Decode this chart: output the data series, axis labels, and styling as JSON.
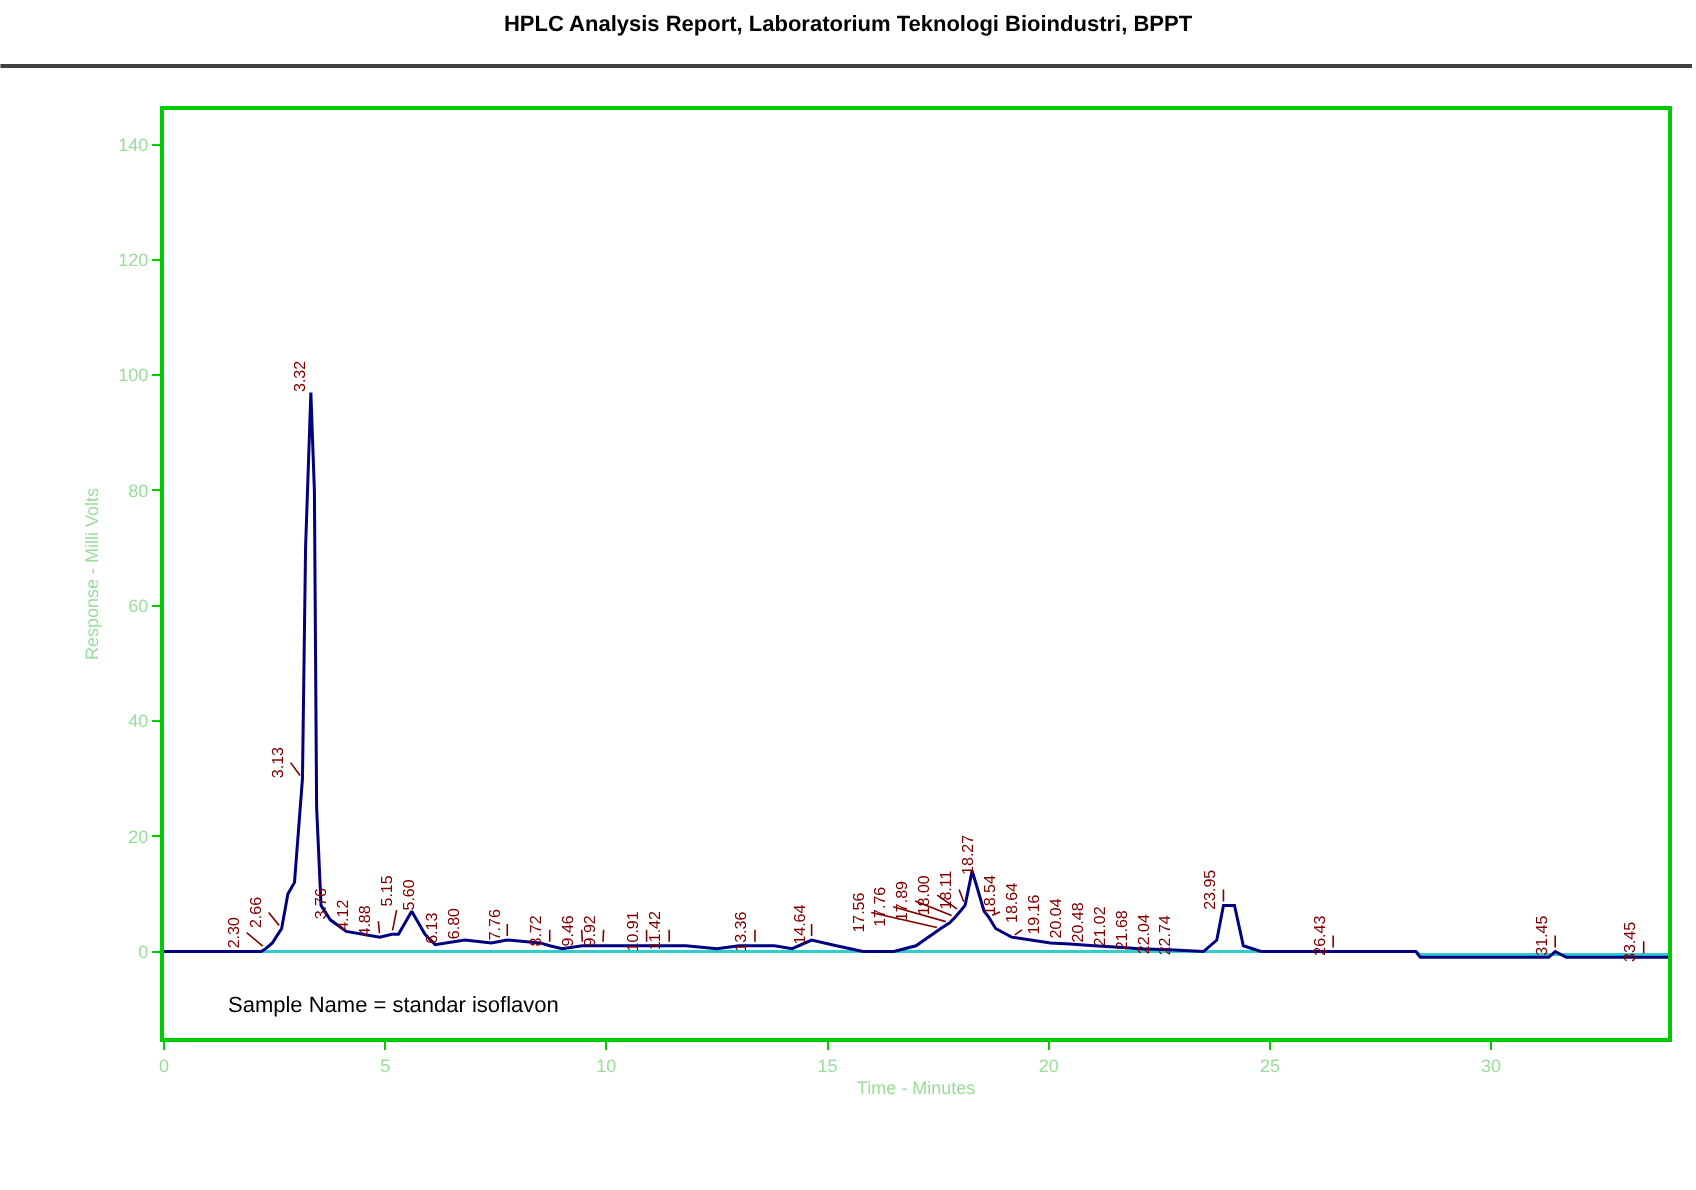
{
  "chart_data": {
    "type": "line",
    "title": "HPLC Analysis Report, Laboratorium Teknologi Bioindustri, BPPT",
    "xlabel": "Time - Minutes",
    "ylabel": "Response - Milli Volts",
    "xlim": [
      0,
      34
    ],
    "xticks": [
      0,
      5,
      10,
      15,
      20,
      25,
      30
    ],
    "ylim": [
      -15,
      146
    ],
    "yticks": [
      0,
      20,
      40,
      60,
      80,
      100,
      120,
      140
    ],
    "marker": "none",
    "line_style": "solid",
    "series": [
      {
        "color": "#33cccc",
        "x": [
          2.2,
          28.3,
          28.4,
          34
        ],
        "values": [
          0,
          0,
          -0.5,
          -0.5
        ]
      },
      {
        "color": "#000080",
        "x": [
          0,
          2.2,
          2.3,
          2.45,
          2.66,
          2.8,
          2.95,
          3.13,
          3.2,
          3.32,
          3.4,
          3.45,
          3.55,
          3.76,
          4.12,
          4.88,
          5.15,
          5.3,
          5.6,
          5.9,
          6.13,
          6.8,
          7.4,
          7.76,
          8.5,
          8.72,
          9.0,
          9.46,
          9.92,
          10.91,
          11.42,
          11.8,
          12.5,
          13,
          13.36,
          13.8,
          14.2,
          14.64,
          15.2,
          15.8,
          16.5,
          17.0,
          17.56,
          17.76,
          17.89,
          18.0,
          18.11,
          18.27,
          18.54,
          18.64,
          18.8,
          19.16,
          20.04,
          20.48,
          21.02,
          21.68,
          22.04,
          22.74,
          23.5,
          23.8,
          23.95,
          24.2,
          24.4,
          24.8,
          26.43,
          28.3,
          28.4,
          31.3,
          31.45,
          31.7,
          33.45,
          34
        ],
        "values": [
          0,
          0,
          0.5,
          1.5,
          4,
          10,
          12,
          30,
          70,
          97,
          80,
          25,
          8,
          5.5,
          3.5,
          2.5,
          3,
          3,
          7,
          3,
          1.2,
          2,
          1.5,
          2,
          1.5,
          1,
          0.5,
          1,
          1,
          1,
          1,
          1,
          0.5,
          1,
          1,
          1,
          0.5,
          2,
          1,
          0,
          0,
          1,
          4,
          5,
          6,
          7,
          8,
          14,
          7,
          6,
          4,
          2.5,
          1.5,
          1.3,
          1,
          0.7,
          0.5,
          0.3,
          0,
          2,
          8,
          8,
          1,
          0,
          0,
          0,
          -1,
          -1,
          0,
          -1,
          -1,
          -1
        ]
      }
    ],
    "annotations": [
      {
        "text": "2.30",
        "x": 2.3,
        "y": 0.5
      },
      {
        "text": "2.66",
        "x": 2.66,
        "y": 4
      },
      {
        "text": "3.13",
        "x": 3.13,
        "y": 30
      },
      {
        "text": "3.32",
        "x": 3.32,
        "y": 97
      },
      {
        "text": "3.76",
        "x": 3.76,
        "y": 5.5
      },
      {
        "text": "4.12",
        "x": 4.12,
        "y": 3.5
      },
      {
        "text": "4.88",
        "x": 4.88,
        "y": 2.5
      },
      {
        "text": "5.15",
        "x": 5.15,
        "y": 3
      },
      {
        "text": "5.60",
        "x": 5.6,
        "y": 7
      },
      {
        "text": "6.13",
        "x": 6.13,
        "y": 1.2
      },
      {
        "text": "6.80",
        "x": 6.8,
        "y": 2
      },
      {
        "text": "7.76",
        "x": 7.76,
        "y": 2
      },
      {
        "text": "8.72",
        "x": 8.72,
        "y": 1
      },
      {
        "text": "9.46",
        "x": 9.46,
        "y": 1
      },
      {
        "text": "9.92",
        "x": 9.92,
        "y": 1
      },
      {
        "text": "10.91",
        "x": 10.91,
        "y": 1
      },
      {
        "text": "11.42",
        "x": 11.42,
        "y": 1
      },
      {
        "text": "13.36",
        "x": 13.36,
        "y": 1
      },
      {
        "text": "14.64",
        "x": 14.64,
        "y": 2
      },
      {
        "text": "17.56",
        "x": 17.56,
        "y": 4
      },
      {
        "text": "17.76",
        "x": 17.76,
        "y": 5
      },
      {
        "text": "17.89",
        "x": 17.89,
        "y": 6
      },
      {
        "text": "18.00",
        "x": 18.0,
        "y": 7
      },
      {
        "text": "18.11",
        "x": 18.11,
        "y": 8
      },
      {
        "text": "18.27",
        "x": 18.27,
        "y": 14
      },
      {
        "text": "18.54",
        "x": 18.54,
        "y": 7
      },
      {
        "text": "18.64",
        "x": 18.64,
        "y": 6
      },
      {
        "text": "19.16",
        "x": 19.16,
        "y": 2.5
      },
      {
        "text": "20.04",
        "x": 20.04,
        "y": 1.5
      },
      {
        "text": "20.48",
        "x": 20.48,
        "y": 1.3
      },
      {
        "text": "21.02",
        "x": 21.02,
        "y": 1
      },
      {
        "text": "21.68",
        "x": 21.68,
        "y": 0.7
      },
      {
        "text": "22.04",
        "x": 22.04,
        "y": 0.5
      },
      {
        "text": "22.74",
        "x": 22.74,
        "y": 0.3
      },
      {
        "text": "23.95",
        "x": 23.95,
        "y": 8
      },
      {
        "text": "26.43",
        "x": 26.43,
        "y": 0
      },
      {
        "text": "31.45",
        "x": 31.45,
        "y": 0
      },
      {
        "text": "33.45",
        "x": 33.45,
        "y": -1
      },
      "Sample Name = standar isoflavon"
    ]
  }
}
